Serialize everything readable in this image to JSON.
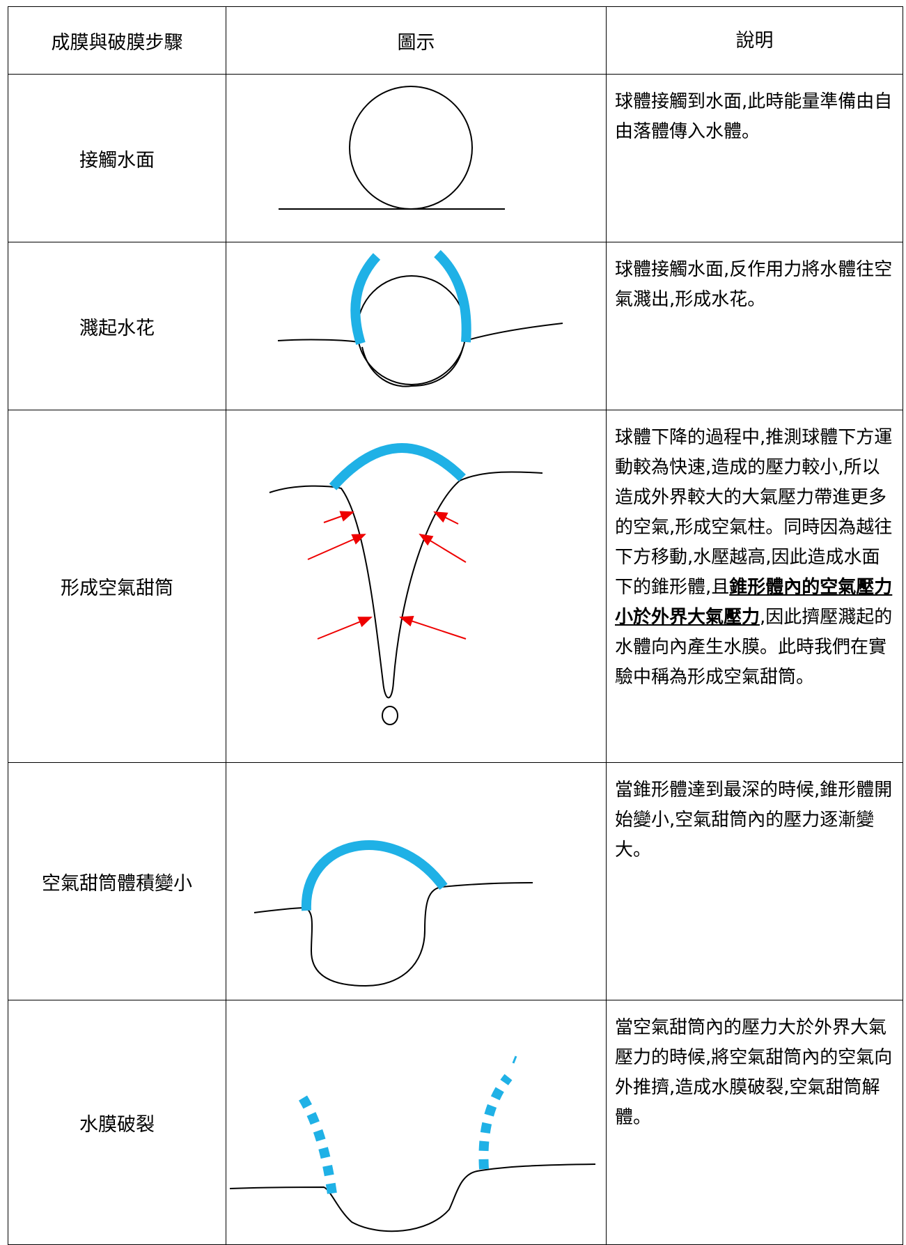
{
  "table": {
    "header": [
      "成膜與破膜步驟",
      "圖示",
      "說明"
    ],
    "rows": [
      {
        "step": "接觸水面",
        "description": [
          "球體接觸到水面,此時能量準備由自由落體傳入水體。"
        ]
      },
      {
        "step": "濺起水花",
        "description": [
          "球體接觸水面,反作用力將水體往空氣濺出,形成水花。"
        ]
      },
      {
        "step": "形成空氣甜筒",
        "description": [
          "球體下降的過程中,推測球體下方運動較為快速,造成的壓力較小,所以造成外界較大的大氣壓力帶進更多的空氣,形成空氣柱。同時因為越往下方移動,水壓越高,因此造成水面下的錐形體,且",
          "錐形體內的空氣壓力小於外界大氣壓力",
          ",因此擠壓濺起的水體向內產生水膜。此時我們在實驗中稱為形成空氣甜筒。"
        ]
      },
      {
        "step": "空氣甜筒體積變小",
        "description": [
          "當錐形體達到最深的時候,錐形體開始變小,空氣甜筒內的壓力逐漸變大。"
        ]
      },
      {
        "step": "水膜破裂",
        "description": [
          "當空氣甜筒內的壓力大於外界大氣壓力的時候,將空氣甜筒內的空氣向外推擠,造成水膜破裂,空氣甜筒解體。"
        ]
      }
    ]
  }
}
